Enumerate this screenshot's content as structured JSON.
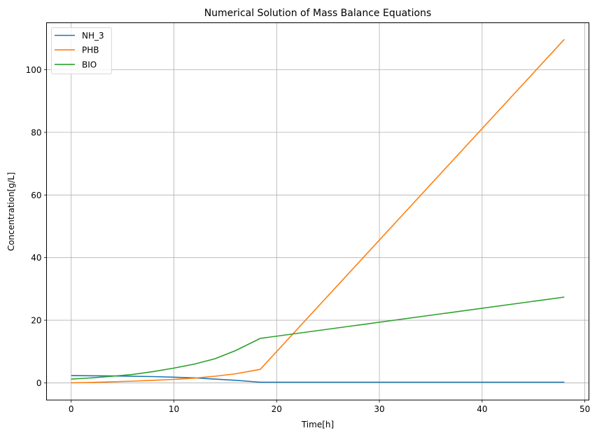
{
  "chart_data": {
    "type": "line",
    "title": "Numerical Solution of Mass Balance Equations",
    "xlabel": "Time[h]",
    "ylabel": "Concentration[g/L]",
    "xlim": [
      -2.4,
      50.4
    ],
    "ylim": [
      -5.5,
      115
    ],
    "xticks": [
      0,
      10,
      20,
      30,
      40,
      50
    ],
    "yticks": [
      0,
      20,
      40,
      60,
      80,
      100
    ],
    "grid": true,
    "legend": "top-left",
    "series": [
      {
        "name": "NH_3",
        "color": "#1f77b4",
        "x": [
          0,
          4,
          8,
          12,
          16,
          18.4,
          48
        ],
        "y": [
          2.3,
          2.2,
          2.0,
          1.6,
          0.8,
          0.2,
          0.2
        ]
      },
      {
        "name": "PHB",
        "color": "#ff7f0e",
        "x": [
          0,
          2,
          4,
          6,
          8,
          10,
          12,
          14,
          16,
          18.4,
          48
        ],
        "y": [
          0,
          0.15,
          0.35,
          0.55,
          0.8,
          1.1,
          1.5,
          2.1,
          2.9,
          4.3,
          109.7
        ]
      },
      {
        "name": "BIO",
        "color": "#2ca02c",
        "x": [
          0,
          2,
          4,
          6,
          8,
          10,
          12,
          14,
          16,
          18.4,
          48
        ],
        "y": [
          1.2,
          1.6,
          2.1,
          2.7,
          3.6,
          4.7,
          6.0,
          7.7,
          10.3,
          14.2,
          27.4
        ]
      }
    ]
  }
}
